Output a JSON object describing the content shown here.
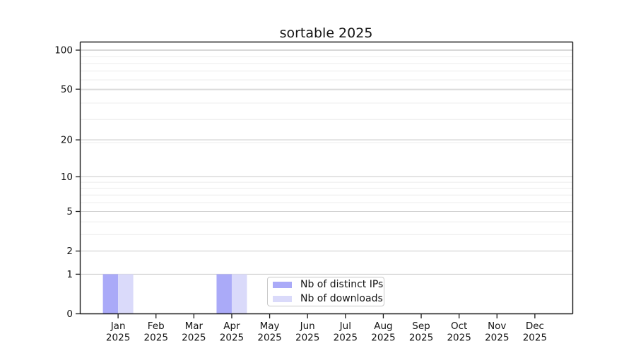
{
  "chart_data": {
    "type": "bar",
    "title": "sortable 2025",
    "x_axis": {
      "categories": [
        "Jan",
        "Feb",
        "Mar",
        "Apr",
        "May",
        "Jun",
        "Jul",
        "Aug",
        "Sep",
        "Oct",
        "Nov",
        "Dec"
      ],
      "year_label": "2025"
    },
    "y_axis": {
      "scale": "log1p",
      "tick_labels": [
        0,
        1,
        2,
        5,
        10,
        20,
        50,
        100
      ],
      "minor_ticks": [
        3,
        4,
        6,
        7,
        8,
        9,
        19,
        29,
        39,
        49,
        59,
        69,
        79,
        89
      ],
      "top_tick": 100
    },
    "series": [
      {
        "name": "Nb of distinct IPs",
        "color": "#aaaaf8",
        "values": [
          1,
          0,
          0,
          1,
          0,
          0,
          0,
          0,
          0,
          0,
          0,
          0
        ]
      },
      {
        "name": "Nb of downloads",
        "color": "#dadafa",
        "values": [
          1,
          0,
          0,
          1,
          0,
          0,
          0,
          0,
          0,
          0,
          0,
          0
        ]
      }
    ],
    "legend": {
      "position": "lower center"
    },
    "grid": true,
    "style": {
      "grid_major_color": "#cfcfcf",
      "grid_minor_color": "#ececec",
      "grid_top_color": "#b2b2b2",
      "axis_color": "#1a1a1a"
    }
  }
}
